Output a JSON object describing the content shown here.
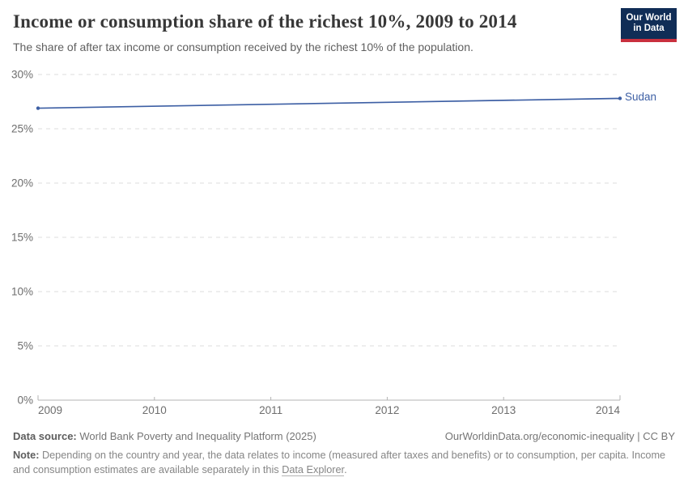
{
  "header": {
    "title": "Income or consumption share of the richest 10%, 2009 to 2014",
    "subtitle": "The share of after tax income or consumption received by the richest 10% of the population.",
    "logo": {
      "line1": "Our World",
      "line2": "in Data",
      "bg_color": "#102d56",
      "bar_color": "#c9303e"
    }
  },
  "chart_data": {
    "type": "line",
    "title": "Income or consumption share of the richest 10%, 2009 to 2014",
    "series": [
      {
        "name": "Sudan",
        "color": "#3d5fa4",
        "points": [
          {
            "x": 2009,
            "y": 26.9
          },
          {
            "x": 2014,
            "y": 27.8
          }
        ]
      }
    ],
    "xlim": [
      2009,
      2014
    ],
    "ylim": [
      0,
      30
    ],
    "x_ticks": [
      2009,
      2010,
      2011,
      2012,
      2013,
      2014
    ],
    "y_ticks": [
      0,
      5,
      10,
      15,
      20,
      25,
      30
    ],
    "y_tick_suffix": "%",
    "grid": "horizontal-dashed",
    "gridline_color": "#dedede",
    "axis_color": "#b3b3b3",
    "tick_label_color": "#6e6e6e",
    "legend_position": "end-of-line"
  },
  "footer": {
    "source_label": "Data source:",
    "source_value": "World Bank Poverty and Inequality Platform (2025)",
    "cc_link": "OurWorldinData.org/economic-inequality | CC BY",
    "note_label": "Note:",
    "note_text": "Depending on the country and year, the data relates to income (measured after taxes and benefits) or to consumption, per capita. Income and consumption estimates are available separately in this ",
    "note_link": "Data Explorer",
    "note_suffix": "."
  }
}
